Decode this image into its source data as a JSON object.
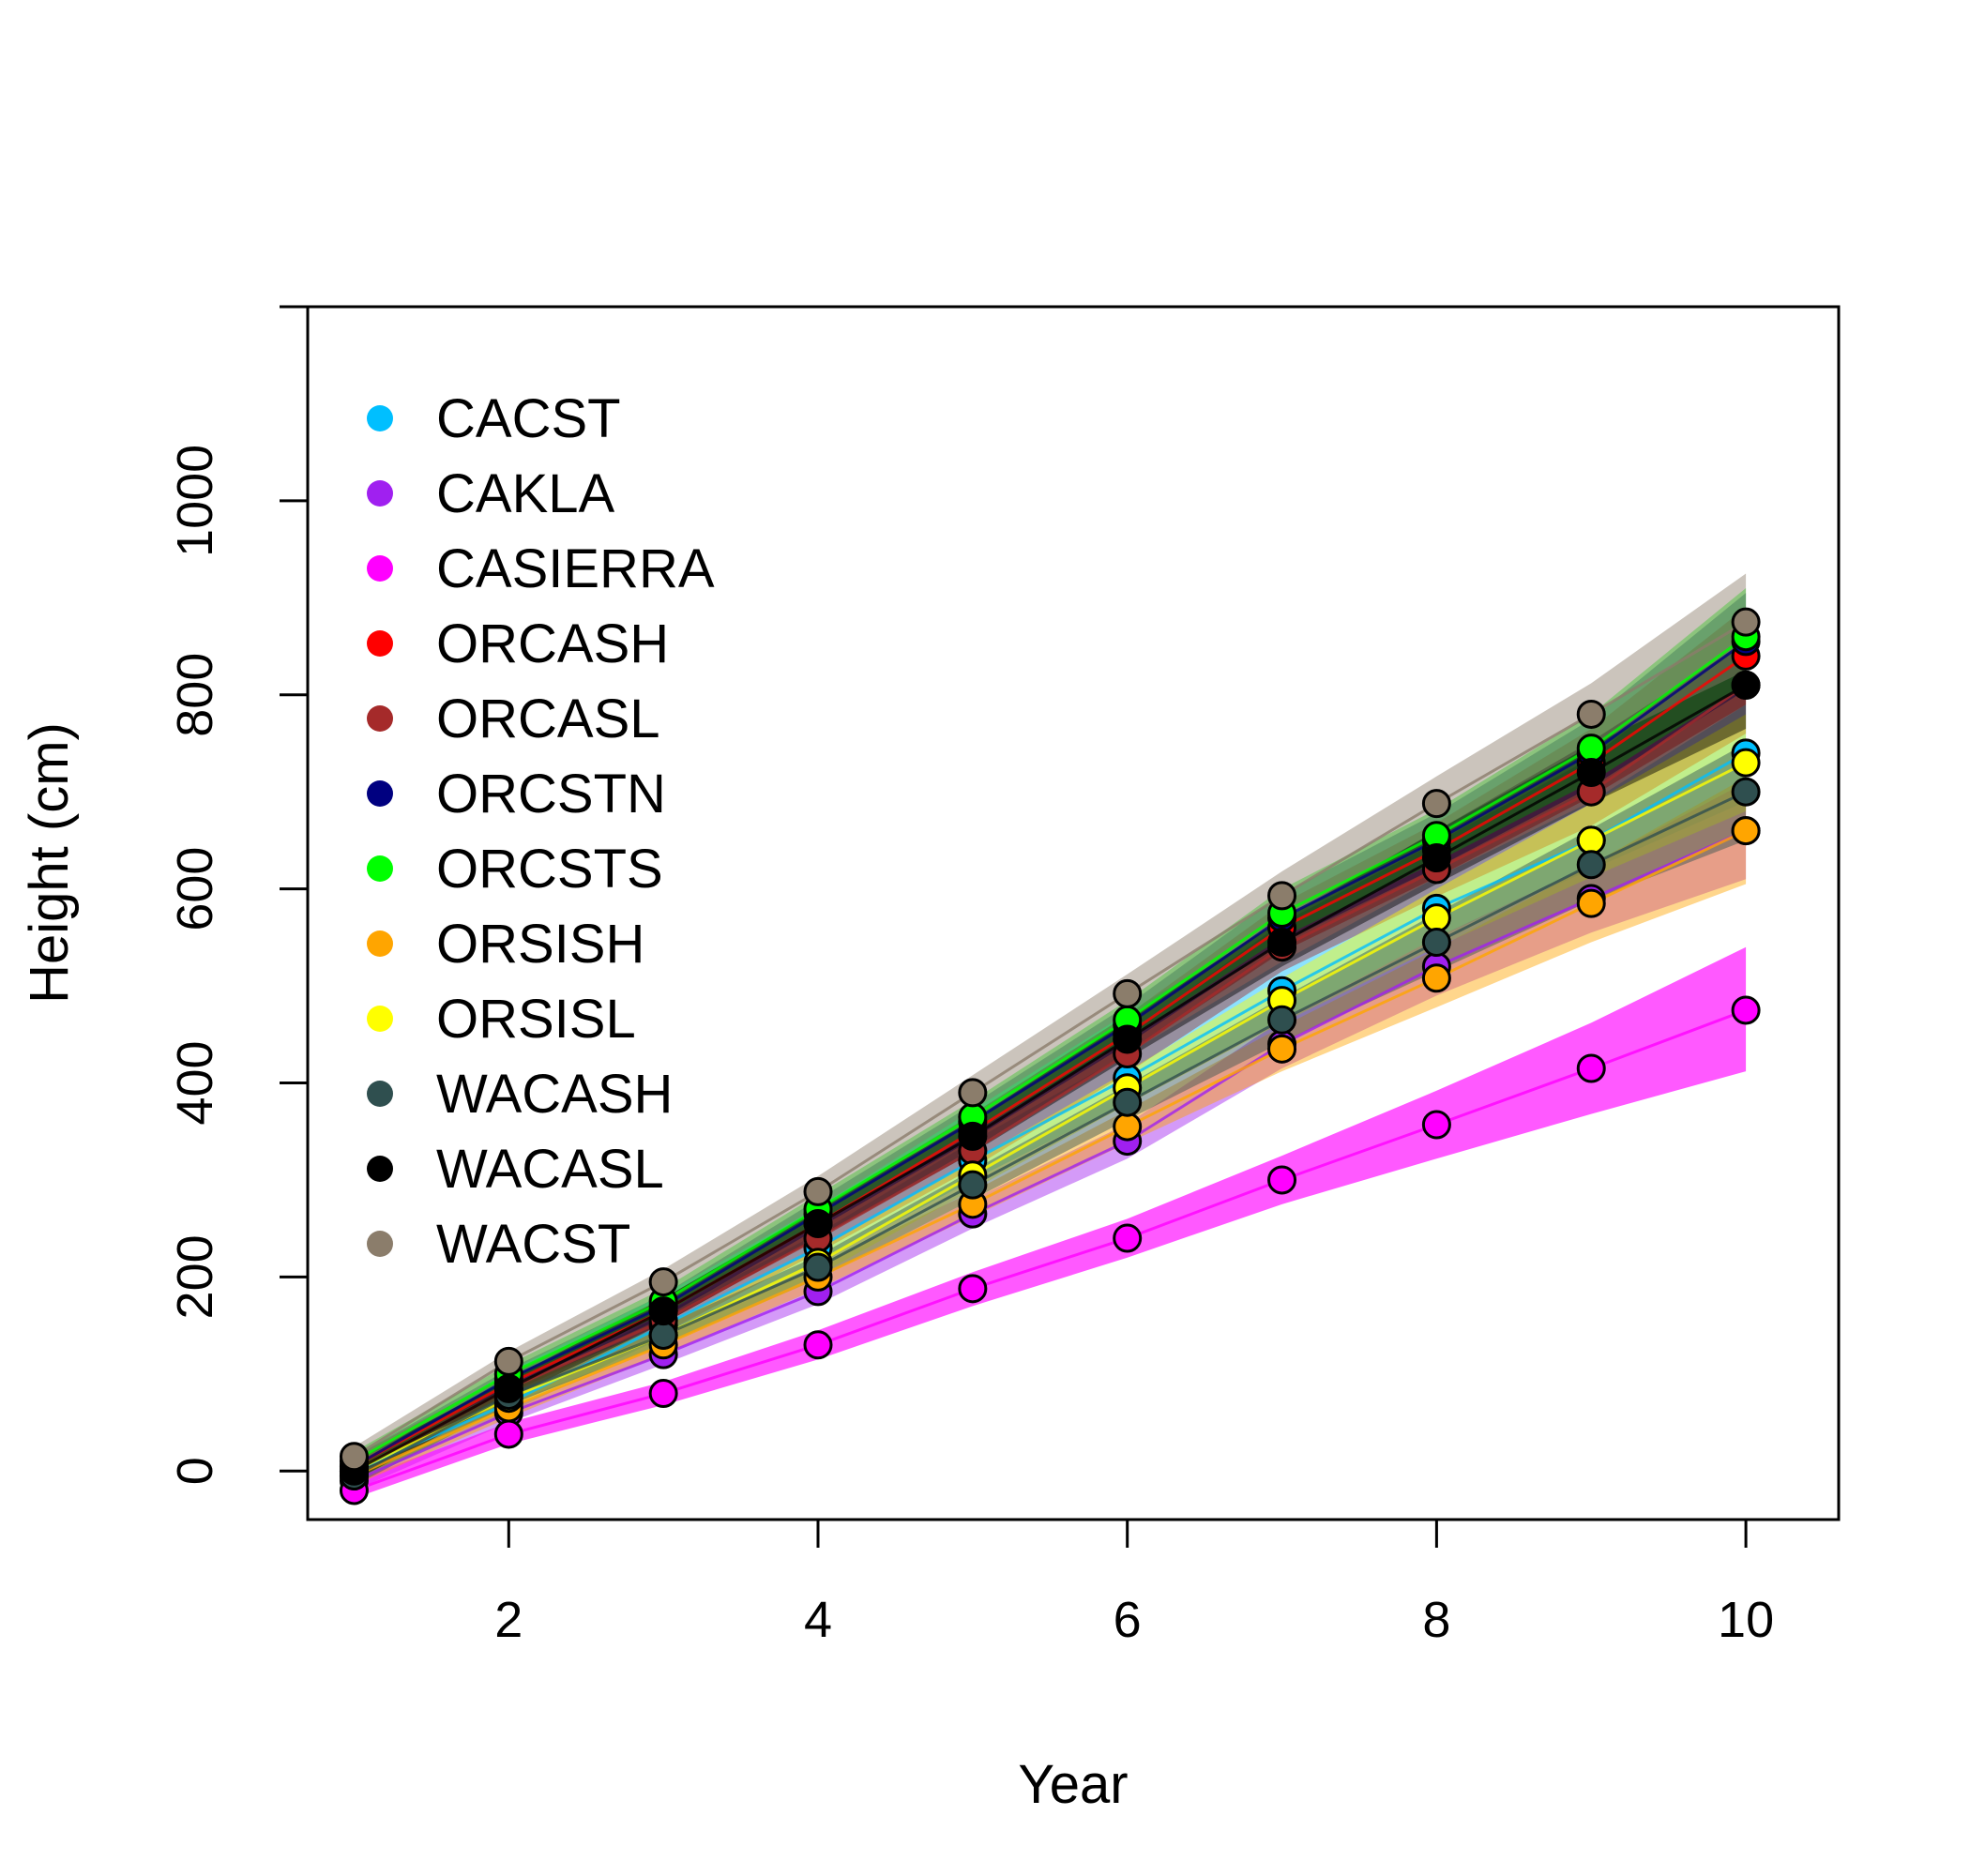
{
  "chart_data": {
    "type": "line",
    "title": "",
    "xlabel": "Year",
    "ylabel": "Height (cm)",
    "xlim": [
      0.7,
      10.6
    ],
    "ylim": [
      -50,
      1200
    ],
    "x_ticks": [
      2,
      4,
      6,
      8,
      10
    ],
    "x_tick_labels": [
      "2",
      "4",
      "6",
      "8",
      "10"
    ],
    "y_ticks": [
      0,
      200,
      400,
      600,
      800,
      1000
    ],
    "y_tick_labels": [
      "0",
      "200",
      "400",
      "600",
      "800",
      "1000"
    ],
    "y_minor_tick": 1200,
    "grid": false,
    "legend_position": "top-left",
    "x": [
      1,
      2,
      3,
      4,
      5,
      6,
      7,
      8,
      9,
      10
    ],
    "series": [
      {
        "name": "CACST",
        "color": "#00BFFF",
        "values": [
          0,
          70,
          150,
          230,
          320,
          405,
          495,
          580,
          650,
          740
        ],
        "band_lower": [
          -12,
          60,
          138,
          215,
          300,
          380,
          465,
          550,
          620,
          690
        ],
        "band_upper": [
          12,
          80,
          162,
          245,
          340,
          430,
          525,
          612,
          690,
          790
        ]
      },
      {
        "name": "CAKLA",
        "color": "#A020F0",
        "values": [
          -10,
          60,
          120,
          185,
          265,
          340,
          440,
          520,
          590,
          660
        ],
        "band_lower": [
          -20,
          50,
          110,
          172,
          250,
          322,
          415,
          490,
          555,
          610
        ],
        "band_upper": [
          0,
          70,
          130,
          198,
          280,
          358,
          465,
          550,
          625,
          710
        ]
      },
      {
        "name": "CASIERRA",
        "color": "#FF00FF",
        "values": [
          -20,
          38,
          80,
          130,
          188,
          240,
          300,
          357,
          415,
          475
        ],
        "band_lower": [
          -28,
          28,
          68,
          115,
          170,
          220,
          275,
          322,
          368,
          412
        ],
        "band_upper": [
          -10,
          50,
          92,
          145,
          205,
          260,
          325,
          392,
          462,
          540
        ]
      },
      {
        "name": "ORCASH",
        "color": "#FF0000",
        "values": [
          5,
          90,
          165,
          255,
          350,
          450,
          560,
          640,
          730,
          840
        ],
        "band_lower": [
          -5,
          80,
          152,
          240,
          332,
          430,
          535,
          612,
          695,
          790
        ],
        "band_upper": [
          15,
          100,
          178,
          270,
          368,
          470,
          585,
          668,
          765,
          890
        ]
      },
      {
        "name": "ORCASL",
        "color": "#A52A2A",
        "values": [
          0,
          85,
          155,
          240,
          330,
          430,
          540,
          620,
          700,
          810
        ],
        "band_lower": [
          -10,
          75,
          142,
          225,
          312,
          410,
          515,
          592,
          665,
          760
        ],
        "band_upper": [
          10,
          95,
          168,
          255,
          348,
          450,
          565,
          648,
          735,
          860
        ]
      },
      {
        "name": "ORCSTN",
        "color": "#000080",
        "values": [
          5,
          95,
          170,
          265,
          360,
          460,
          570,
          650,
          740,
          855
        ],
        "band_lower": [
          -5,
          85,
          158,
          250,
          342,
          440,
          545,
          622,
          705,
          805
        ],
        "band_upper": [
          15,
          105,
          182,
          280,
          378,
          480,
          595,
          678,
          775,
          905
        ]
      },
      {
        "name": "ORCSTS",
        "color": "#00FF00",
        "values": [
          10,
          100,
          175,
          270,
          365,
          465,
          575,
          655,
          745,
          860
        ],
        "band_lower": [
          0,
          90,
          162,
          255,
          348,
          445,
          550,
          628,
          710,
          810
        ],
        "band_upper": [
          20,
          110,
          188,
          285,
          382,
          485,
          600,
          682,
          780,
          910
        ]
      },
      {
        "name": "ORSISH",
        "color": "#FFA500",
        "values": [
          -5,
          65,
          130,
          200,
          275,
          355,
          435,
          508,
          585,
          660
        ],
        "band_lower": [
          -15,
          55,
          120,
          188,
          262,
          338,
          412,
          478,
          545,
          605
        ],
        "band_upper": [
          5,
          75,
          140,
          212,
          288,
          372,
          458,
          538,
          625,
          715
        ]
      },
      {
        "name": "ORSISL",
        "color": "#FFFF00",
        "values": [
          0,
          75,
          140,
          215,
          305,
          395,
          485,
          570,
          650,
          730
        ],
        "band_lower": [
          -10,
          65,
          130,
          202,
          290,
          378,
          462,
          540,
          612,
          680
        ],
        "band_upper": [
          10,
          85,
          150,
          228,
          320,
          412,
          508,
          600,
          688,
          780
        ]
      },
      {
        "name": "WACASH",
        "color": "#2F4F4F",
        "values": [
          -5,
          78,
          140,
          210,
          295,
          380,
          465,
          545,
          625,
          700
        ],
        "band_lower": [
          -15,
          68,
          130,
          198,
          280,
          362,
          442,
          515,
          588,
          650
        ],
        "band_upper": [
          5,
          88,
          150,
          222,
          310,
          398,
          488,
          575,
          662,
          750
        ]
      },
      {
        "name": "WACASL",
        "color": "#000000",
        "values": [
          0,
          85,
          165,
          255,
          345,
          445,
          545,
          632,
          720,
          810
        ],
        "band_lower": [
          -10,
          75,
          152,
          240,
          328,
          425,
          520,
          605,
          688,
          765
        ],
        "band_upper": [
          10,
          95,
          178,
          270,
          362,
          465,
          570,
          660,
          752,
          855
        ]
      },
      {
        "name": "WACST",
        "color": "#8B7D6B",
        "values": [
          15,
          113,
          195,
          288,
          390,
          492,
          593,
          688,
          780,
          875
        ],
        "band_lower": [
          5,
          103,
          182,
          272,
          372,
          472,
          568,
          660,
          748,
          825
        ],
        "band_upper": [
          25,
          123,
          208,
          304,
          408,
          512,
          618,
          716,
          812,
          925
        ]
      }
    ]
  }
}
